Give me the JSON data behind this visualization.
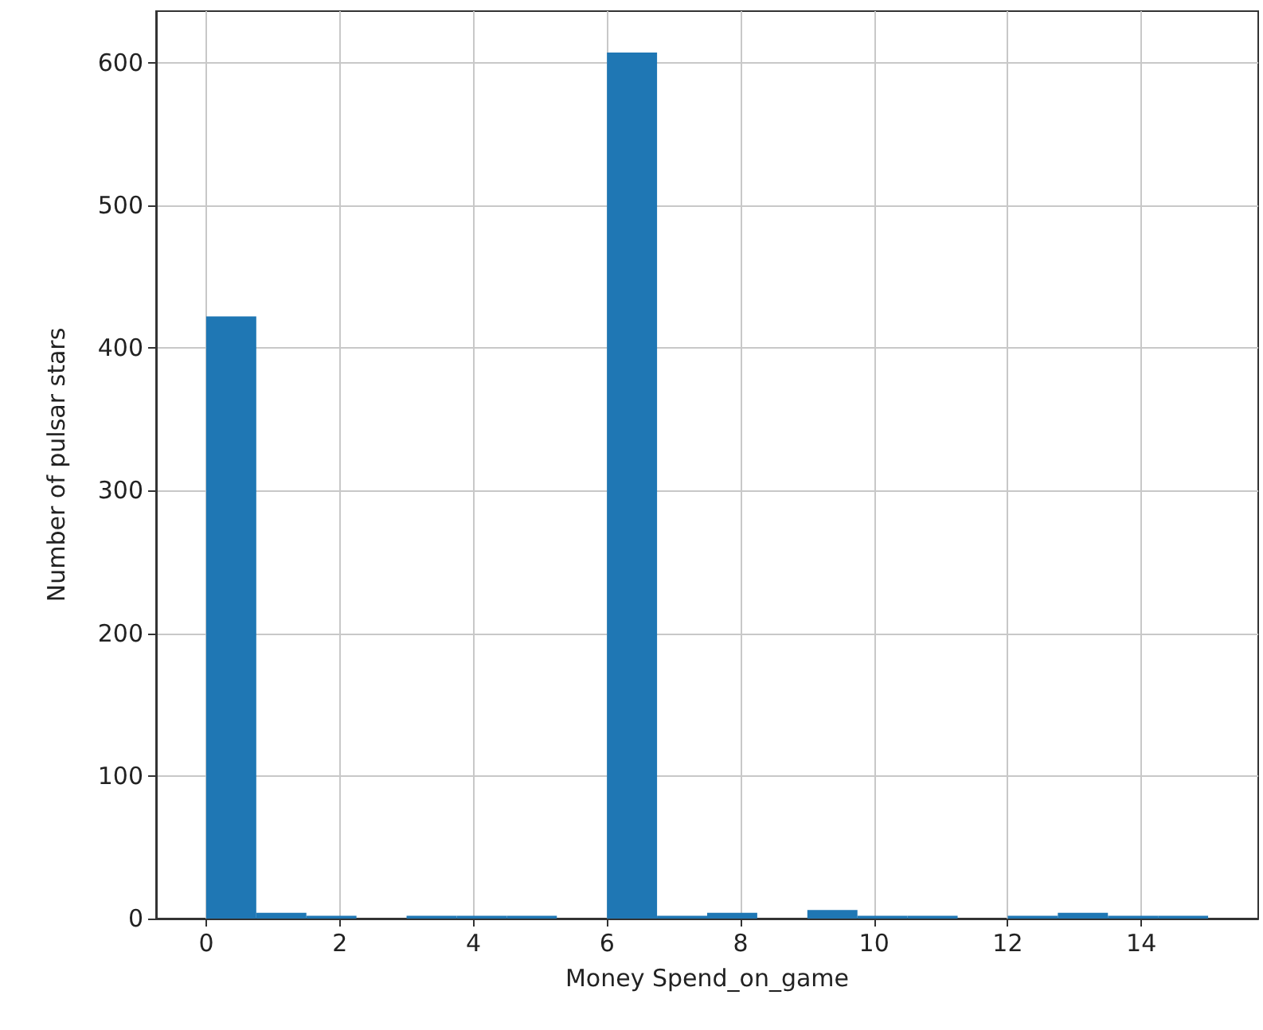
{
  "chart_data": {
    "type": "histogram",
    "xlabel": "Money Spend_on_game",
    "ylabel": "Number of pulsar stars",
    "bins": [
      0,
      0.75,
      1.5,
      2.25,
      3,
      3.75,
      4.5,
      5.25,
      6,
      6.75,
      7.5,
      8.25,
      9,
      9.75,
      10.5,
      11.25,
      12,
      12.75,
      13.5,
      14.25,
      15
    ],
    "values": [
      422,
      4,
      2,
      0,
      2,
      2,
      2,
      0,
      607,
      2,
      4,
      0,
      6,
      2,
      2,
      0,
      2,
      4,
      2,
      2
    ],
    "color": "#1f77b4",
    "xlim": [
      -0.75,
      15.75
    ],
    "xticks": [
      0,
      2,
      4,
      6,
      8,
      10,
      12,
      14
    ],
    "ylim": [
      0,
      636
    ],
    "yticks": [
      0,
      100,
      200,
      300,
      400,
      500,
      600
    ],
    "grid": true
  }
}
